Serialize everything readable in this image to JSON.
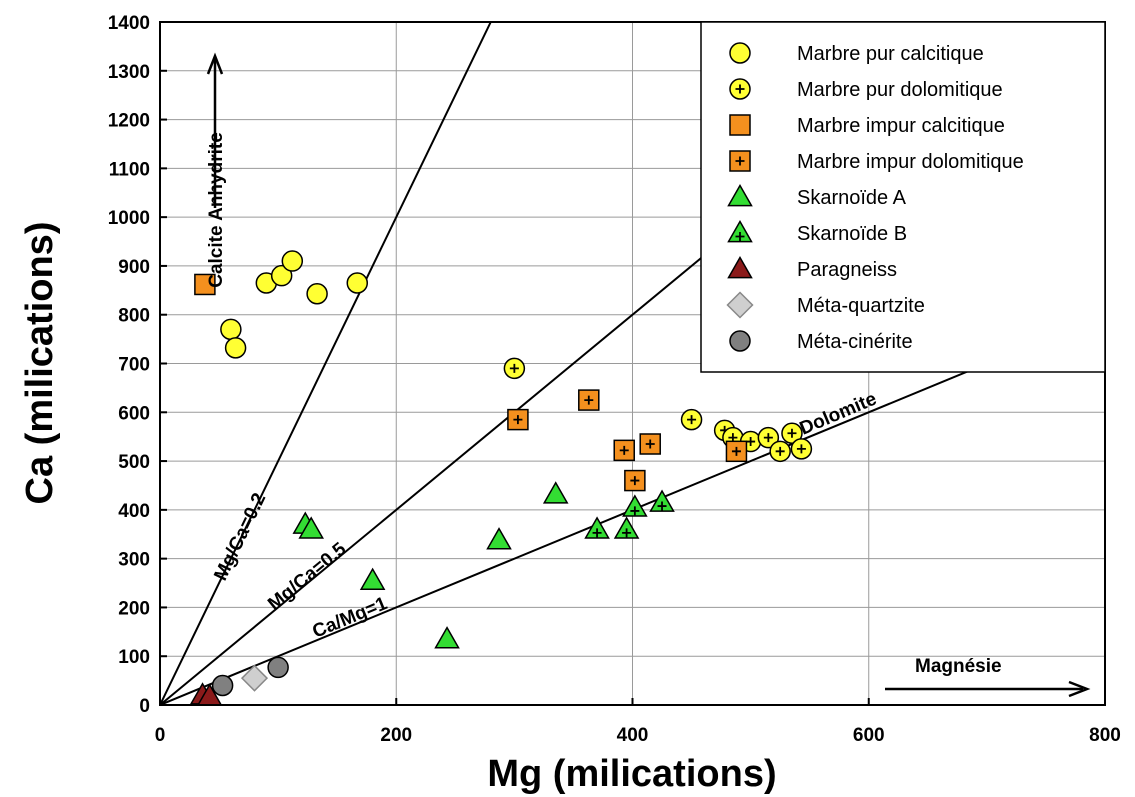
{
  "chart_data": {
    "type": "scatter",
    "xlabel": "Mg (milications)",
    "ylabel": "Ca (milications)",
    "xlim": [
      0,
      800
    ],
    "ylim": [
      0,
      1400
    ],
    "x_ticks": [
      0,
      200,
      400,
      600,
      800
    ],
    "y_ticks": [
      0,
      100,
      200,
      300,
      400,
      500,
      600,
      700,
      800,
      900,
      1000,
      1100,
      1200,
      1300,
      1400
    ],
    "grid": true,
    "legend_position": "top-right",
    "reference_lines": [
      {
        "label": "Mg/Ca=0.2",
        "ca_over_mg": 5
      },
      {
        "label": "Mg/Ca=0.5",
        "ca_over_mg": 2
      },
      {
        "label": "Ca/Mg=1",
        "ca_over_mg": 1
      }
    ],
    "annotations": {
      "calcite": "Calcite Anhydrite",
      "magnesie": "Magnésie",
      "dolomite": "Dolomite"
    },
    "series": [
      {
        "name": "Marbre pur calcitique",
        "marker": "circle",
        "fill": "#ffff33",
        "plus": false,
        "points": [
          [
            90,
            865
          ],
          [
            103,
            880
          ],
          [
            112,
            910
          ],
          [
            133,
            843
          ],
          [
            167,
            865
          ],
          [
            60,
            770
          ],
          [
            64,
            732
          ]
        ]
      },
      {
        "name": "Marbre pur dolomitique",
        "marker": "circle",
        "fill": "#ffff33",
        "plus": true,
        "points": [
          [
            300,
            690
          ],
          [
            450,
            585
          ],
          [
            478,
            563
          ],
          [
            485,
            548
          ],
          [
            500,
            540
          ],
          [
            515,
            548
          ],
          [
            525,
            520
          ],
          [
            535,
            557
          ],
          [
            543,
            525
          ]
        ]
      },
      {
        "name": "Marbre impur calcitique",
        "marker": "square",
        "fill": "#f4901e",
        "plus": false,
        "points": [
          [
            38,
            862
          ]
        ]
      },
      {
        "name": "Marbre impur dolomitique",
        "marker": "square",
        "fill": "#f4901e",
        "plus": true,
        "points": [
          [
            303,
            585
          ],
          [
            363,
            625
          ],
          [
            393,
            522
          ],
          [
            415,
            535
          ],
          [
            402,
            460
          ],
          [
            488,
            520
          ]
        ]
      },
      {
        "name": "Skarnoïde A",
        "marker": "triangle",
        "fill": "#33dd33",
        "plus": false,
        "points": [
          [
            123,
            370
          ],
          [
            128,
            360
          ],
          [
            180,
            255
          ],
          [
            243,
            135
          ],
          [
            287,
            338
          ],
          [
            335,
            432
          ]
        ]
      },
      {
        "name": "Skarnoïde B",
        "marker": "triangle",
        "fill": "#33dd33",
        "plus": true,
        "points": [
          [
            370,
            360
          ],
          [
            395,
            360
          ],
          [
            402,
            405
          ],
          [
            425,
            415
          ]
        ]
      },
      {
        "name": "Paragneiss",
        "marker": "triangle",
        "fill": "#8b1a1a",
        "plus": false,
        "points": [
          [
            36,
            20
          ],
          [
            42,
            18
          ]
        ]
      },
      {
        "name": "Méta-quartzite",
        "marker": "diamond",
        "fill": "#cfcfcf",
        "plus": false,
        "points": [
          [
            80,
            55
          ]
        ]
      },
      {
        "name": "Méta-cinérite",
        "marker": "circle",
        "fill": "#808080",
        "plus": false,
        "points": [
          [
            53,
            40
          ],
          [
            100,
            77
          ]
        ]
      }
    ]
  }
}
